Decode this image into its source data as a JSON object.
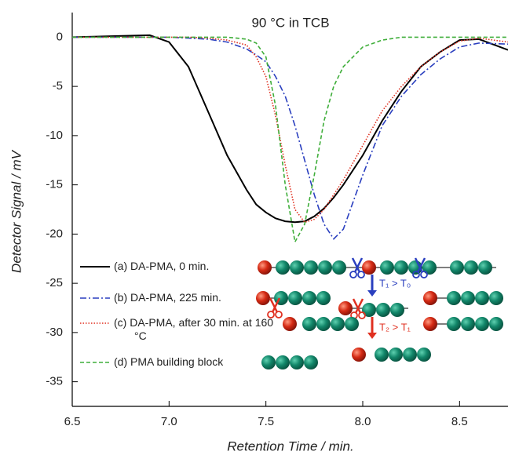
{
  "chart_data": {
    "type": "line",
    "title": "90 °C in TCB",
    "x_label": "Retention Time / min.",
    "y_label": "Detector Signal / mV",
    "x": [
      6.5,
      6.7,
      6.9,
      7.0,
      7.1,
      7.2,
      7.3,
      7.4,
      7.45,
      7.5,
      7.55,
      7.6,
      7.65,
      7.7,
      7.75,
      7.8,
      7.85,
      7.9,
      8.0,
      8.1,
      8.2,
      8.3,
      8.4,
      8.5,
      8.6,
      8.75
    ],
    "series": [
      {
        "name": "(a) DA-PMA, 0 min.",
        "color": "#000000",
        "style": "solid",
        "values": [
          0,
          0.1,
          0.2,
          -0.5,
          -3,
          -7.5,
          -12,
          -15.5,
          -17,
          -17.8,
          -18.4,
          -18.7,
          -18.8,
          -18.7,
          -18.2,
          -17.4,
          -16.3,
          -15,
          -12,
          -8.5,
          -5.5,
          -3,
          -1.5,
          -0.3,
          -0.2,
          -1.3
        ]
      },
      {
        "name": "(b) DA-PMA, 225 min.",
        "color": "#2a3fbf",
        "style": "dashdot",
        "values": [
          0,
          0,
          0,
          0,
          -0.1,
          -0.2,
          -0.5,
          -1.2,
          -1.8,
          -2.5,
          -4,
          -6,
          -9,
          -12.5,
          -16,
          -19,
          -20.5,
          -19.5,
          -14,
          -9,
          -6,
          -3.8,
          -2.2,
          -1,
          -0.6,
          -0.7
        ]
      },
      {
        "name": "(c) DA-PMA, after 30 min. at 160 °C",
        "color": "#e03020",
        "style": "dotted",
        "values": [
          0,
          0,
          0,
          0,
          0,
          -0.1,
          -0.3,
          -0.8,
          -2,
          -4,
          -8,
          -13,
          -17.5,
          -18.8,
          -18.5,
          -17.5,
          -16,
          -14.5,
          -11,
          -7.5,
          -5,
          -3,
          -1.5,
          -0.4,
          -0.1,
          -0.5
        ]
      },
      {
        "name": "(d) PMA building block",
        "color": "#3fae3a",
        "style": "dashed",
        "values": [
          0,
          0,
          0,
          0,
          0,
          0,
          0,
          -0.2,
          -0.6,
          -2,
          -7,
          -15,
          -20.8,
          -19,
          -14,
          -8.5,
          -5,
          -3,
          -1,
          -0.3,
          0,
          0,
          0,
          0,
          0,
          0
        ]
      }
    ],
    "xlim": [
      6.5,
      8.75
    ],
    "xticks": [
      6.5,
      7.0,
      7.5,
      8.0,
      8.5
    ],
    "ylim": [
      -37.5,
      2.5
    ],
    "yticks": [
      0,
      -5,
      -10,
      -15,
      -20,
      -25,
      -30,
      -35
    ],
    "annotations": [
      "T₁ > T₀",
      "T₂ > T₁"
    ]
  }
}
